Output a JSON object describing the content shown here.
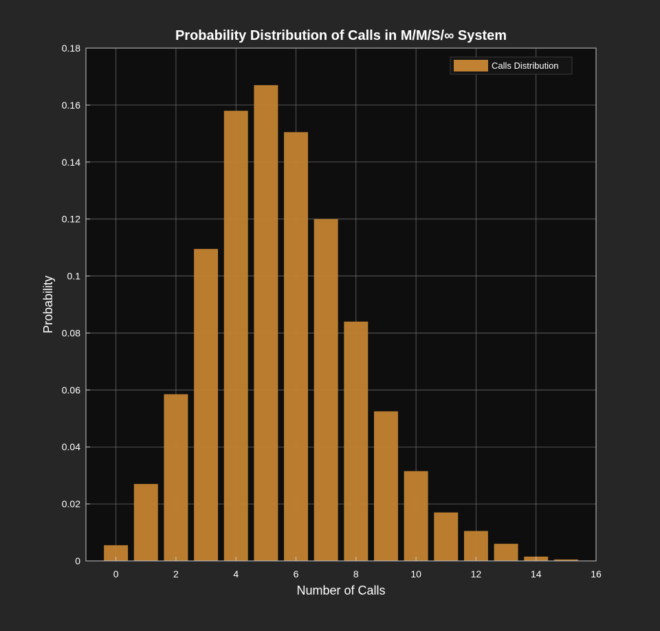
{
  "chart_data": {
    "type": "bar",
    "title": "Probability Distribution of Calls in M/M/S/∞ System",
    "xlabel": "Number of Calls",
    "ylabel": "Probability",
    "x": [
      0,
      1,
      2,
      3,
      4,
      5,
      6,
      7,
      8,
      9,
      10,
      11,
      12,
      13,
      14,
      15
    ],
    "series": [
      {
        "name": "Calls Distribution",
        "values": [
          0.0055,
          0.027,
          0.0585,
          0.1095,
          0.158,
          0.167,
          0.1505,
          0.12,
          0.084,
          0.0525,
          0.0315,
          0.017,
          0.0105,
          0.006,
          0.0015,
          0.0005
        ]
      }
    ],
    "xlim": [
      -1,
      16
    ],
    "ylim": [
      0,
      0.18
    ],
    "x_ticks": [
      "0",
      "2",
      "4",
      "6",
      "8",
      "10",
      "12",
      "14",
      "16"
    ],
    "y_ticks": [
      "0",
      "0.02",
      "0.04",
      "0.06",
      "0.08",
      "0.1",
      "0.12",
      "0.14",
      "0.16",
      "0.18"
    ],
    "grid": true,
    "legend_position": "top-right",
    "colors": {
      "figure_background": "#262626",
      "plot_background": "#0e0e0e",
      "bar": "#c08132",
      "grid": "#7a7a7a",
      "text": "#ffffff"
    }
  }
}
